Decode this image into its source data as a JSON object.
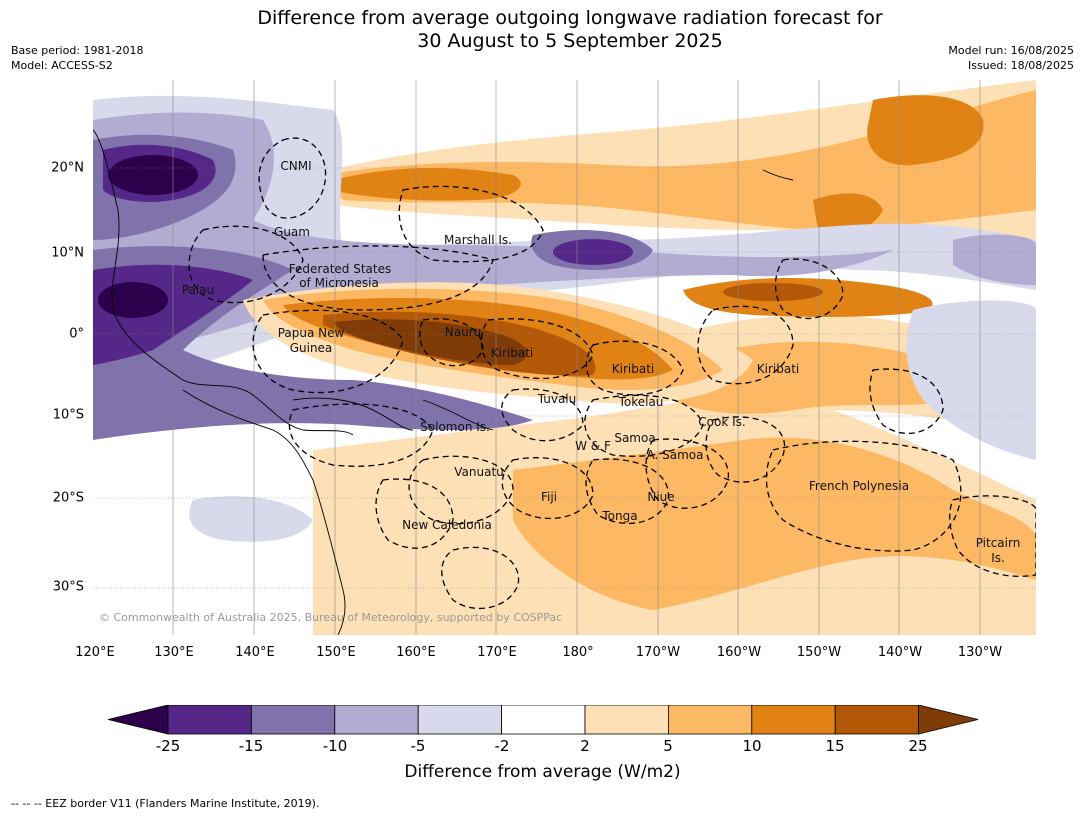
{
  "header": {
    "title_line1": "Difference from average outgoing longwave radiation forecast for",
    "title_line2": "30 August to 5 September 2025",
    "base_period": "Base period: 1981-2018",
    "model": "Model: ACCESS-S2",
    "model_run": "Model run: 16/08/2025",
    "issued": "Issued: 18/08/2025"
  },
  "map": {
    "copyright": "© Commonwealth of Australia 2025, Bureau of Meteorology, supported by COSPPac",
    "lon_ticks": [
      "120°E",
      "130°E",
      "140°E",
      "150°E",
      "160°E",
      "170°E",
      "180°",
      "170°W",
      "160°W",
      "150°W",
      "140°W",
      "130°W"
    ],
    "lat_ticks": [
      "20°N",
      "10°N",
      "0°",
      "10°S",
      "20°S",
      "30°S"
    ],
    "place_labels": [
      {
        "name": "CNMI"
      },
      {
        "name": "Guam"
      },
      {
        "name": "Marshall Is."
      },
      {
        "name": "Federated States"
      },
      {
        "name": "of Micronesia"
      },
      {
        "name": "Palau"
      },
      {
        "name": "Papua New"
      },
      {
        "name": "Guinea"
      },
      {
        "name": "Nauru"
      },
      {
        "name": "Kiribati"
      },
      {
        "name": "Kiribati"
      },
      {
        "name": "Kiribati"
      },
      {
        "name": "Tuvalu"
      },
      {
        "name": "Tokelau"
      },
      {
        "name": "Solomon Is."
      },
      {
        "name": "Cook Is."
      },
      {
        "name": "Samoa"
      },
      {
        "name": "W & F"
      },
      {
        "name": "A. Samoa"
      },
      {
        "name": "Vanuatu"
      },
      {
        "name": "Fiji"
      },
      {
        "name": "Niue"
      },
      {
        "name": "Tonga"
      },
      {
        "name": "French Polynesia"
      },
      {
        "name": "New Caledonia"
      },
      {
        "name": "Pitcairn"
      },
      {
        "name": "Is."
      }
    ]
  },
  "colorbar": {
    "label": "Difference from average (W/m2)",
    "ticks": [
      "-25",
      "-15",
      "-10",
      "-5",
      "-2",
      "2",
      "5",
      "10",
      "15",
      "25"
    ],
    "colors": {
      "below_min": "#2d004b",
      "c1": "#542788",
      "c2": "#8073ac",
      "c3": "#b2abd2",
      "c4": "#d8daeb",
      "c5": "#ffffff",
      "c6": "#fee0b6",
      "c7": "#fdb863",
      "c8": "#e08214",
      "c9": "#b35806",
      "above_max": "#7f3b08"
    }
  },
  "footnote": "--  --  -- EEZ border V11 (Flanders Marine Institute, 2019)."
}
